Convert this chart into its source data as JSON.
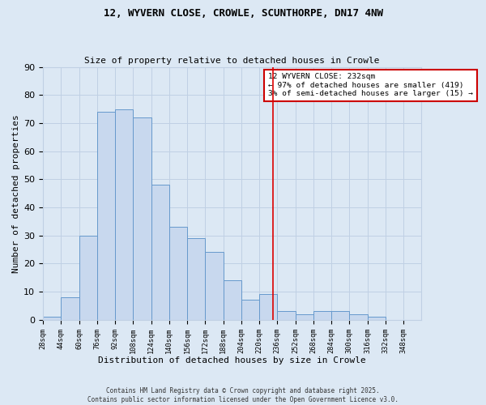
{
  "title": "12, WYVERN CLOSE, CROWLE, SCUNTHORPE, DN17 4NW",
  "subtitle": "Size of property relative to detached houses in Crowle",
  "xlabel": "Distribution of detached houses by size in Crowle",
  "ylabel": "Number of detached properties",
  "bar_values": [
    1,
    8,
    30,
    74,
    75,
    72,
    48,
    33,
    29,
    24,
    14,
    7,
    9,
    3,
    2,
    3,
    3,
    2,
    1
  ],
  "bin_edges": [
    28,
    44,
    60,
    76,
    92,
    108,
    124,
    140,
    156,
    172,
    188,
    204,
    220,
    236,
    252,
    268,
    284,
    300,
    316
  ],
  "bin_width": 16,
  "tick_labels": [
    "28sqm",
    "44sqm",
    "60sqm",
    "76sqm",
    "92sqm",
    "108sqm",
    "124sqm",
    "140sqm",
    "156sqm",
    "172sqm",
    "188sqm",
    "204sqm",
    "220sqm",
    "236sqm",
    "252sqm",
    "268sqm",
    "284sqm",
    "300sqm",
    "316sqm",
    "332sqm",
    "348sqm"
  ],
  "bar_color": "#c8d8ee",
  "bar_edge_color": "#6699cc",
  "vline_x": 232,
  "vline_color": "#dd0000",
  "ylim": [
    0,
    90
  ],
  "yticks": [
    0,
    10,
    20,
    30,
    40,
    50,
    60,
    70,
    80,
    90
  ],
  "annotation_title": "12 WYVERN CLOSE: 232sqm",
  "annotation_line1": "← 97% of detached houses are smaller (419)",
  "annotation_line2": "3% of semi-detached houses are larger (15) →",
  "annotation_box_facecolor": "#ffffff",
  "annotation_box_edgecolor": "#cc0000",
  "grid_color": "#c0d0e4",
  "background_color": "#dce8f4",
  "footer1": "Contains HM Land Registry data © Crown copyright and database right 2025.",
  "footer2": "Contains public sector information licensed under the Open Government Licence v3.0."
}
